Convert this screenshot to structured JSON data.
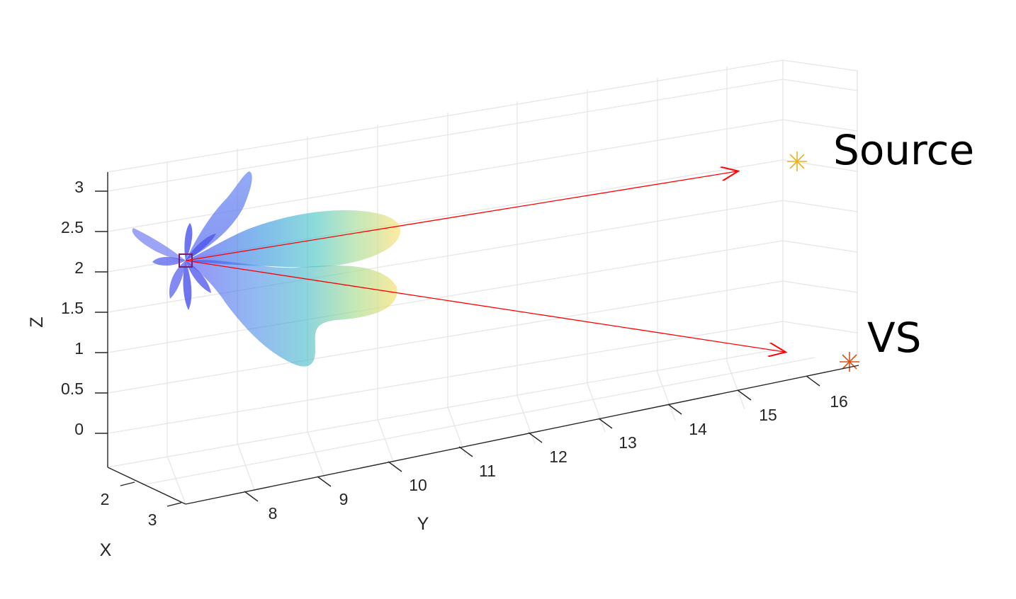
{
  "chart_data": {
    "type": "scatter",
    "title": "",
    "axes": {
      "x": {
        "label": "X",
        "ticks": [
          "2",
          "3"
        ]
      },
      "y": {
        "label": "Y",
        "ticks": [
          "8",
          "9",
          "10",
          "11",
          "12",
          "13",
          "14",
          "15",
          "16"
        ]
      },
      "z": {
        "label": "Z",
        "ticks": [
          "0",
          "0.5",
          "1",
          "1.5",
          "2",
          "2.5",
          "3"
        ],
        "range": [
          -0.3,
          3.3
        ]
      }
    },
    "grid": true,
    "view": "3d",
    "origin": {
      "name": "receiver",
      "y": 7.2,
      "z": 2.1
    },
    "points": [
      {
        "label": "Source",
        "y": 15.9,
        "z": 3.2,
        "marker": "asterisk",
        "color": "#EDB120"
      },
      {
        "label": "VS",
        "y": 16.1,
        "z": 0.85,
        "marker": "asterisk",
        "color": "#D95319"
      }
    ],
    "arrows": [
      {
        "from": "receiver",
        "to": "Source",
        "color": "#FF0000"
      },
      {
        "from": "receiver",
        "to": "VS",
        "color": "#FF0000"
      }
    ],
    "surface": {
      "type": "directivity-balloon",
      "colormap": [
        "#3a3ff0",
        "#2d8fdf",
        "#3fc3c3",
        "#9ed88f",
        "#f7e27a"
      ]
    }
  }
}
